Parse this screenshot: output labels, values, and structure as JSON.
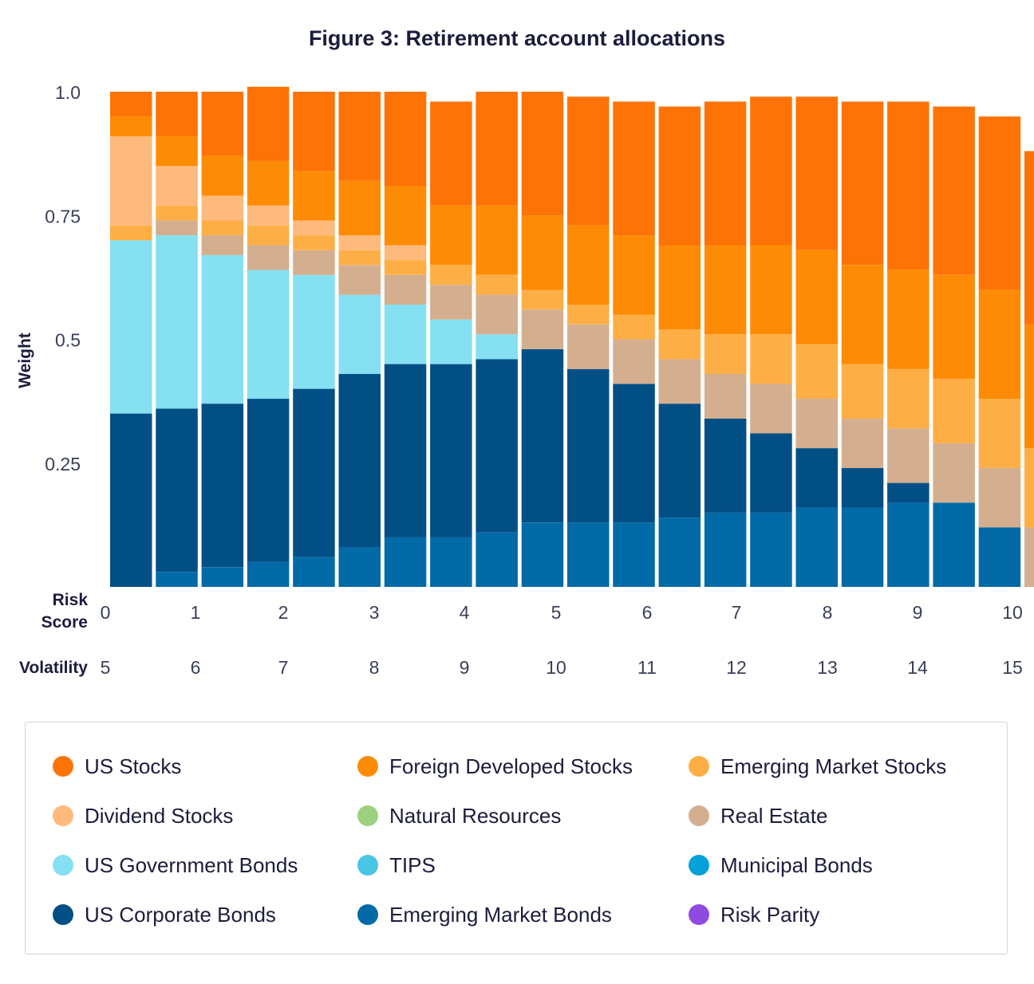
{
  "chart_data": {
    "type": "bar",
    "stacked": true,
    "title": "Figure 3: Retirement account allocations",
    "ylabel": "Weight",
    "ylim": [
      0,
      1
    ],
    "yticks": [
      "0.25",
      "0.5",
      "0.75",
      "1.0"
    ],
    "ytick_values": [
      0.25,
      0.5,
      0.75,
      1.0
    ],
    "x_row_labels": {
      "risk_score": "Risk Score",
      "volatility": "Volatility"
    },
    "risk_score_ticks": [
      "0",
      "1",
      "2",
      "3",
      "4",
      "5",
      "6",
      "7",
      "8",
      "9",
      "10"
    ],
    "volatility_ticks": [
      "5",
      "6",
      "7",
      "8",
      "9",
      "10",
      "11",
      "12",
      "13",
      "14",
      "15"
    ],
    "categories": [
      "0",
      "0.5",
      "1",
      "1.5",
      "2",
      "2.5",
      "3",
      "3.5",
      "4",
      "4.5",
      "5",
      "5.5",
      "6",
      "6.5",
      "7",
      "7.5",
      "8",
      "8.5",
      "9",
      "9.5",
      "10"
    ],
    "grid": false,
    "legend_placement": "bottom",
    "series": [
      {
        "name": "Emerging Market Bonds",
        "color": "#026aa7",
        "values": [
          0,
          0.03,
          0.04,
          0.05,
          0.06,
          0.08,
          0.1,
          0.1,
          0.11,
          0.13,
          0.13,
          0.13,
          0.14,
          0.15,
          0.15,
          0.16,
          0.16,
          0.17,
          0.17,
          0.12,
          0
        ]
      },
      {
        "name": "US Corporate Bonds",
        "color": "#024f86",
        "values": [
          0.35,
          0.33,
          0.33,
          0.33,
          0.34,
          0.35,
          0.35,
          0.35,
          0.35,
          0.35,
          0.31,
          0.28,
          0.23,
          0.19,
          0.16,
          0.12,
          0.08,
          0.04,
          0,
          0,
          0
        ]
      },
      {
        "name": "US Government Bonds",
        "color": "#85e0f2",
        "values": [
          0.35,
          0.35,
          0.3,
          0.26,
          0.23,
          0.16,
          0.12,
          0.09,
          0.05,
          0,
          0,
          0,
          0,
          0,
          0,
          0,
          0,
          0,
          0,
          0,
          0
        ]
      },
      {
        "name": "TIPS",
        "color": "#48c6e6",
        "values": [
          0,
          0,
          0,
          0,
          0,
          0,
          0,
          0,
          0,
          0,
          0,
          0,
          0,
          0,
          0,
          0,
          0,
          0,
          0,
          0,
          0
        ]
      },
      {
        "name": "Municipal Bonds",
        "color": "#05a2d9",
        "values": [
          0,
          0,
          0,
          0,
          0,
          0,
          0,
          0,
          0,
          0,
          0,
          0,
          0,
          0,
          0,
          0,
          0,
          0,
          0,
          0,
          0
        ]
      },
      {
        "name": "Real Estate",
        "color": "#d4af8f",
        "values": [
          0,
          0.03,
          0.04,
          0.05,
          0.05,
          0.06,
          0.06,
          0.07,
          0.08,
          0.08,
          0.09,
          0.09,
          0.09,
          0.09,
          0.1,
          0.1,
          0.1,
          0.11,
          0.12,
          0.12,
          0.12
        ]
      },
      {
        "name": "Natural Resources",
        "color": "#9dd17f",
        "values": [
          0,
          0,
          0,
          0,
          0,
          0,
          0,
          0,
          0,
          0,
          0,
          0,
          0,
          0,
          0,
          0,
          0,
          0,
          0,
          0,
          0
        ]
      },
      {
        "name": "Emerging Market Stocks",
        "color": "#fdaf46",
        "values": [
          0.03,
          0.03,
          0.03,
          0.04,
          0.03,
          0.03,
          0.03,
          0.04,
          0.04,
          0.04,
          0.04,
          0.05,
          0.06,
          0.08,
          0.1,
          0.11,
          0.11,
          0.12,
          0.13,
          0.14,
          0.16
        ]
      },
      {
        "name": "Dividend Stocks",
        "color": "#feba7c",
        "values": [
          0.18,
          0.08,
          0.05,
          0.04,
          0.03,
          0.03,
          0.03,
          0,
          0,
          0,
          0,
          0,
          0,
          0,
          0,
          0,
          0,
          0,
          0,
          0,
          0
        ]
      },
      {
        "name": "Foreign Developed Stocks",
        "color": "#fe8b05",
        "values": [
          0.04,
          0.06,
          0.08,
          0.09,
          0.1,
          0.11,
          0.12,
          0.12,
          0.14,
          0.15,
          0.16,
          0.16,
          0.17,
          0.18,
          0.18,
          0.19,
          0.2,
          0.2,
          0.21,
          0.22,
          0.25
        ]
      },
      {
        "name": "US Stocks",
        "color": "#fe7305",
        "values": [
          0.05,
          0.09,
          0.13,
          0.15,
          0.16,
          0.18,
          0.19,
          0.21,
          0.23,
          0.25,
          0.26,
          0.27,
          0.28,
          0.29,
          0.3,
          0.31,
          0.33,
          0.34,
          0.34,
          0.35,
          0.35
        ]
      },
      {
        "name": "Risk Parity",
        "color": "#8f4bdf",
        "values": [
          0,
          0,
          0,
          0,
          0,
          0,
          0,
          0,
          0,
          0,
          0,
          0,
          0,
          0,
          0,
          0,
          0,
          0,
          0,
          0,
          0
        ]
      }
    ]
  },
  "legend": {
    "items": [
      {
        "label": "US Stocks",
        "color": "#fe7305"
      },
      {
        "label": "Foreign Developed Stocks",
        "color": "#fe8b05"
      },
      {
        "label": "Emerging Market Stocks",
        "color": "#fdaf46"
      },
      {
        "label": "Dividend Stocks",
        "color": "#feba7c"
      },
      {
        "label": "Natural Resources",
        "color": "#9dd17f"
      },
      {
        "label": "Real Estate",
        "color": "#d4af8f"
      },
      {
        "label": "US Government Bonds",
        "color": "#85e0f2"
      },
      {
        "label": "TIPS",
        "color": "#48c6e6"
      },
      {
        "label": "Municipal Bonds",
        "color": "#05a2d9"
      },
      {
        "label": "US Corporate Bonds",
        "color": "#024f86"
      },
      {
        "label": "Emerging Market Bonds",
        "color": "#026aa7"
      },
      {
        "label": "Risk Parity",
        "color": "#8f4bdf"
      }
    ]
  }
}
